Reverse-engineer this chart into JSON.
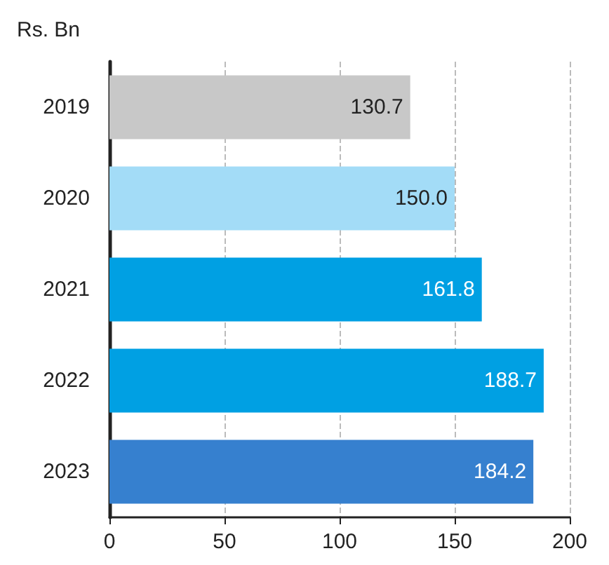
{
  "chart_data": {
    "type": "bar",
    "orientation": "horizontal",
    "ylabel": "Rs. Bn",
    "categories": [
      "2019",
      "2020",
      "2021",
      "2022",
      "2023"
    ],
    "values": [
      130.7,
      150.0,
      161.8,
      188.7,
      184.2
    ],
    "colors": [
      "#c8c8c8",
      "#a3dcf7",
      "#00a0e3",
      "#00a0e3",
      "#3680cf"
    ],
    "value_labels": [
      "130.7",
      "150.0",
      "161.8",
      "188.7",
      "184.2"
    ],
    "xlim": [
      0,
      200
    ],
    "xticks": [
      0,
      50,
      100,
      150,
      200
    ],
    "grid": "x"
  }
}
